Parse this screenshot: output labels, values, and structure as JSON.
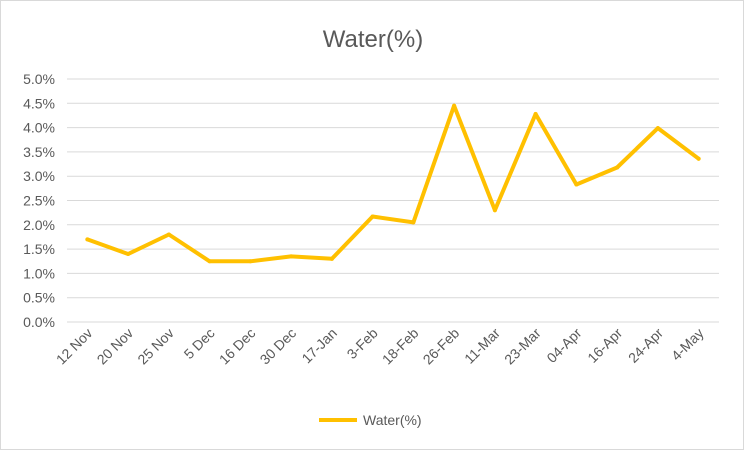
{
  "chart_data": {
    "type": "line",
    "title": "Water(%)",
    "xlabel": "",
    "ylabel": "",
    "categories": [
      "12 Nov",
      "20 Nov",
      "25 Nov",
      "5 Dec",
      "16 Dec",
      "30 Dec",
      "17-Jan",
      "3-Feb",
      "18-Feb",
      "26-Feb",
      "11-Mar",
      "23-Mar",
      "04-Apr",
      "16-Apr",
      "24-Apr",
      "4-May"
    ],
    "series": [
      {
        "name": "Water(%)",
        "color": "#FFC000",
        "values": [
          0.017,
          0.014,
          0.018,
          0.0125,
          0.0125,
          0.0135,
          0.013,
          0.0217,
          0.0205,
          0.0445,
          0.023,
          0.0428,
          0.0283,
          0.0318,
          0.0399,
          0.0336
        ]
      }
    ],
    "yticks": [
      "0.0%",
      "0.5%",
      "1.0%",
      "1.5%",
      "2.0%",
      "2.5%",
      "3.0%",
      "3.5%",
      "4.0%",
      "4.5%",
      "5.0%"
    ],
    "ylim": [
      0,
      0.05
    ],
    "grid": true,
    "legend_position": "bottom"
  }
}
